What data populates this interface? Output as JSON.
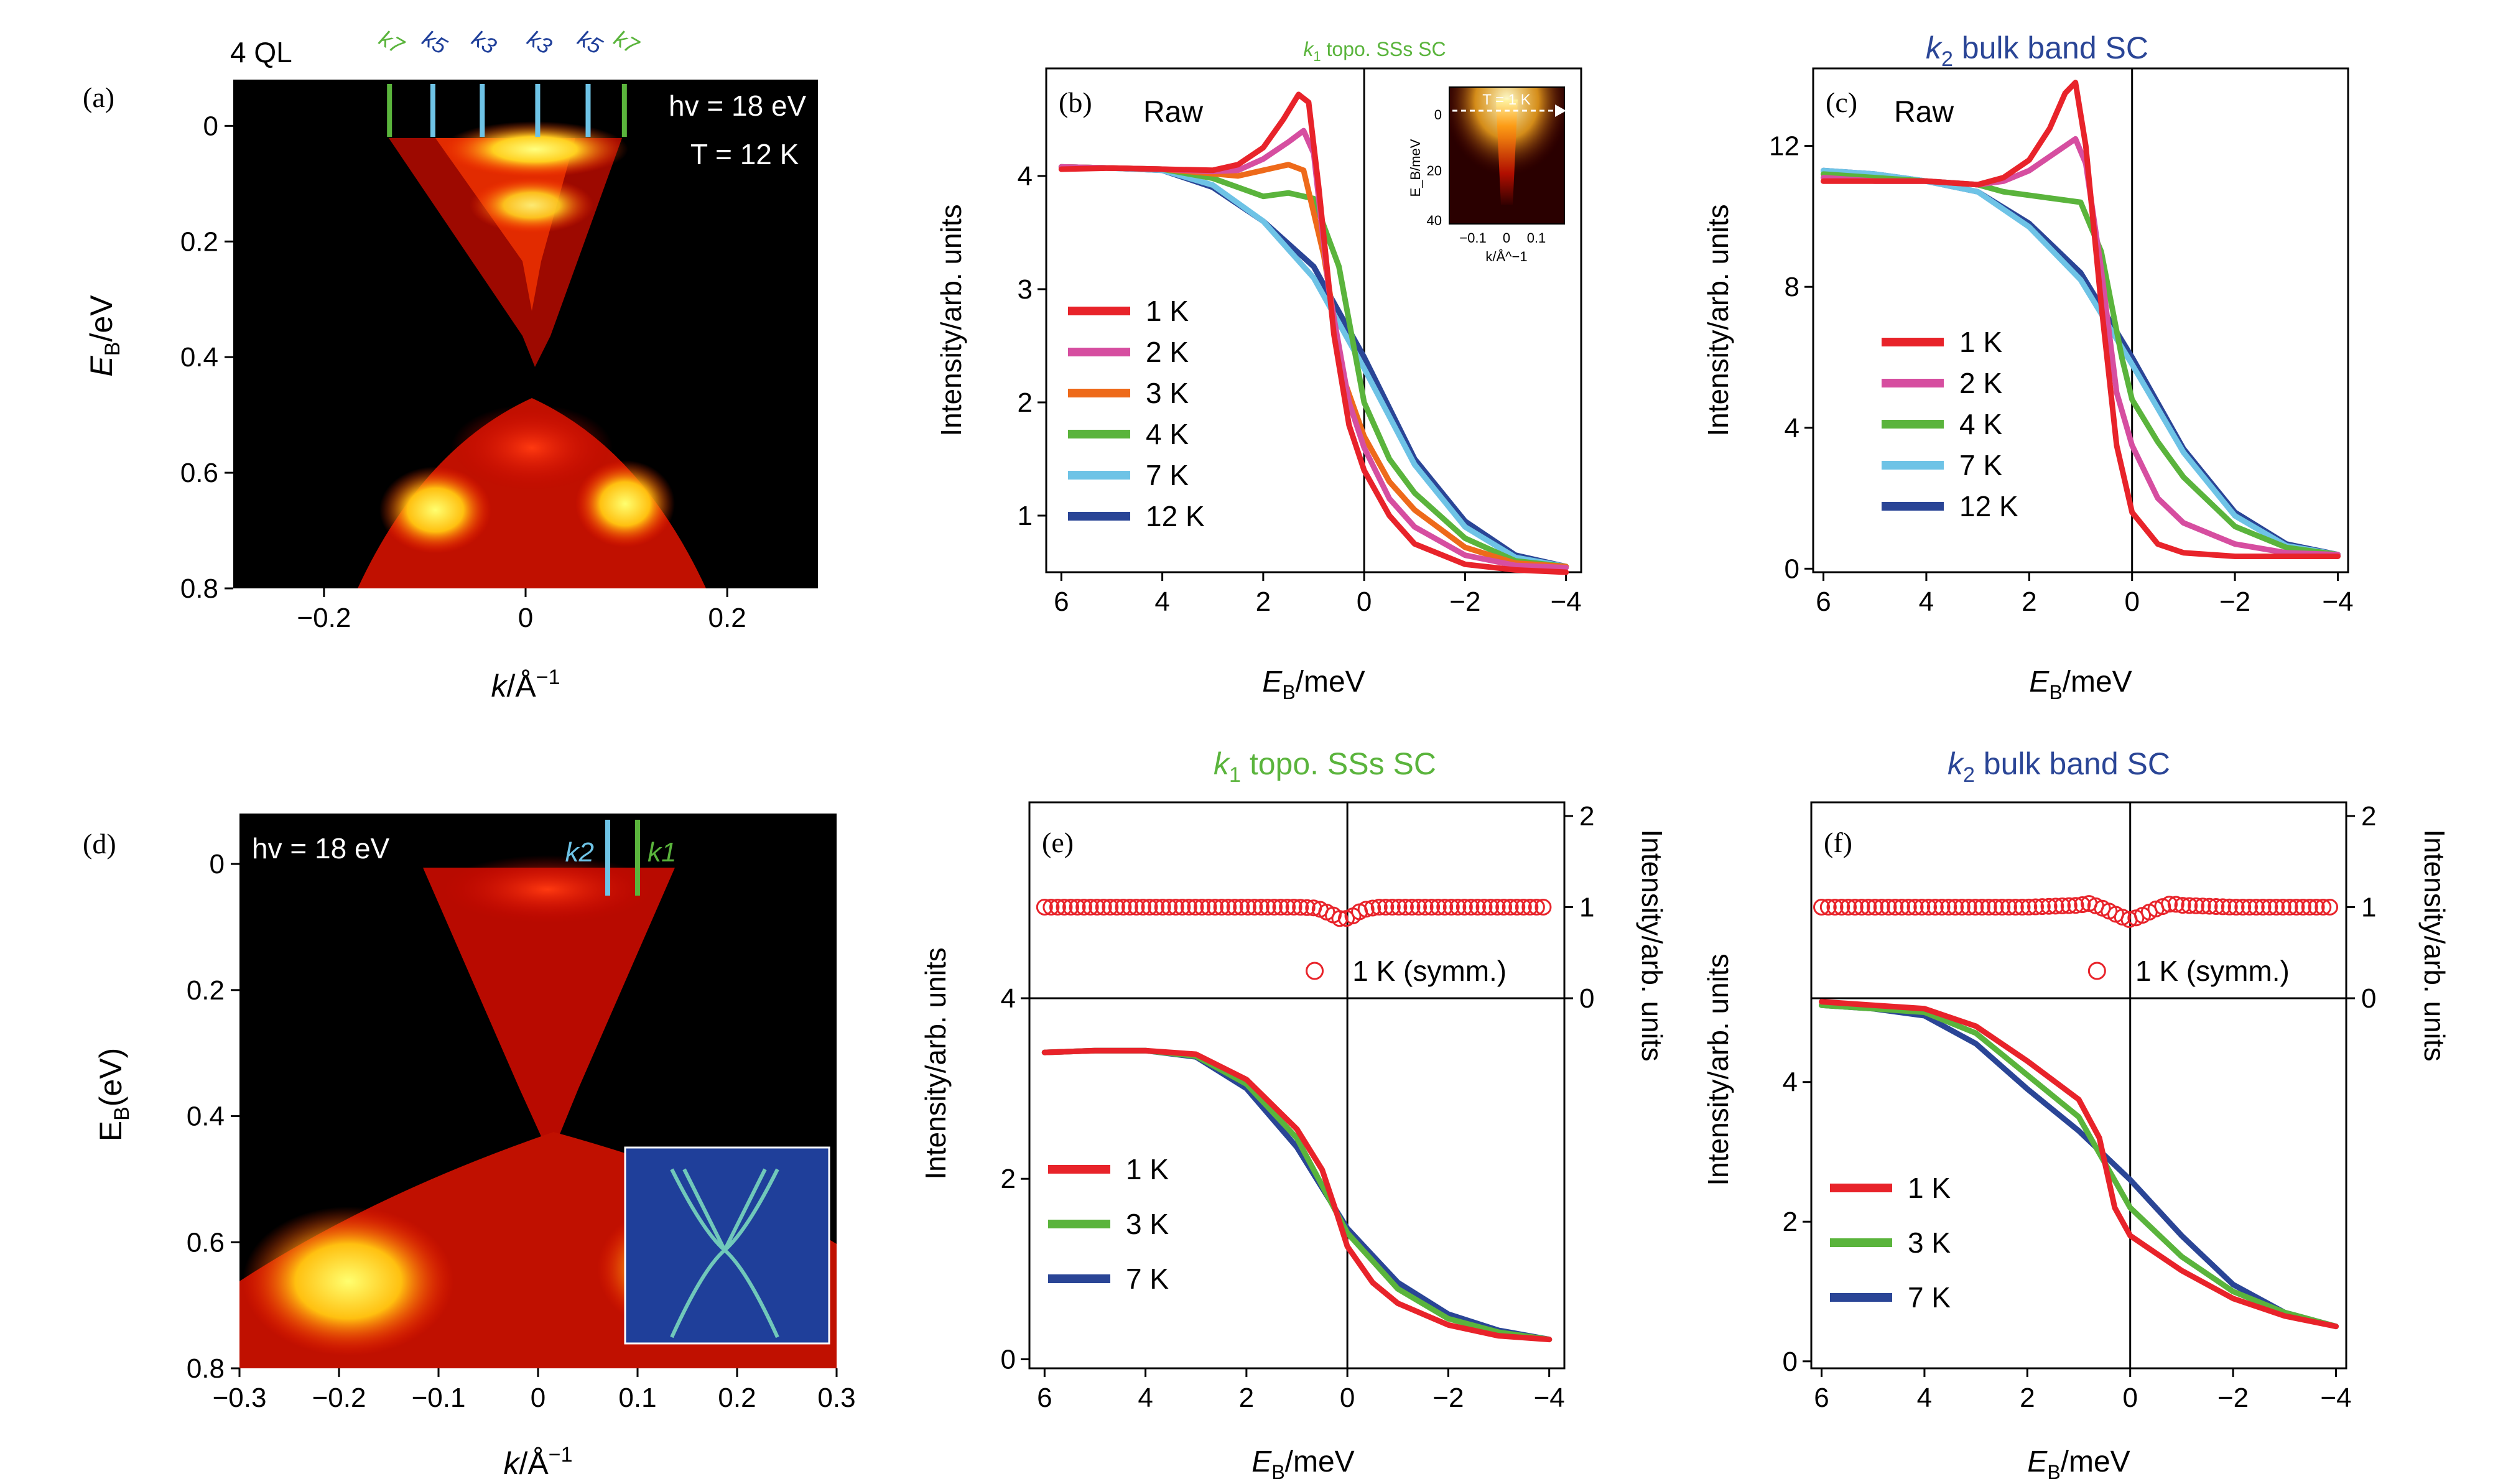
{
  "chart_data": [
    {
      "panel": "(a)",
      "type": "heatmap",
      "xlabel_pre": "k",
      "xlabel_post": "/Å",
      "xlabel_sup": "−1",
      "ylabel_pre": "E",
      "ylabel_sub": "B",
      "ylabel_post": "/eV",
      "xlim": [
        -0.29,
        0.29
      ],
      "ylim": [
        0.8,
        -0.08
      ],
      "xticks": [
        -0.2,
        0,
        0.2
      ],
      "xticklabels": [
        "−0.2",
        "0",
        "0.2"
      ],
      "yticks": [
        0,
        0.2,
        0.4,
        0.6,
        0.8
      ],
      "yticklabels": [
        "0",
        "0.2",
        "0.4",
        "0.6",
        "0.8"
      ],
      "corner_label": "4 QL",
      "annotation_hv": "hv = 18 eV",
      "annotation_T": "T = 12 K",
      "k_markers": [
        {
          "k": -0.135,
          "label": "k7",
          "color": "#5ab43c"
        },
        {
          "k": -0.092,
          "label": "k5",
          "color": "#6ec3e6"
        },
        {
          "k": -0.043,
          "label": "k3",
          "color": "#6ec3e6"
        },
        {
          "k": 0.012,
          "label": "k3",
          "color": "#6ec3e6"
        },
        {
          "k": 0.062,
          "label": "k5",
          "color": "#6ec3e6"
        },
        {
          "k": 0.098,
          "label": "k7",
          "color": "#5ab43c"
        }
      ]
    },
    {
      "panel": "(b)",
      "type": "line",
      "title_sub": "1",
      "title_text": " topo. SSs SC",
      "title_color": "#5ab43c",
      "corner_label": "Raw",
      "xlabel_pre": "E",
      "xlabel_sub": "B",
      "xlabel_post": "/meV",
      "ylabel": "Intensity/arb. units",
      "xlim": [
        6.3,
        -4.3
      ],
      "ylim": [
        0.5,
        4.95
      ],
      "xticks": [
        6,
        4,
        2,
        0,
        -2,
        -4
      ],
      "xticklabels": [
        "6",
        "4",
        "2",
        "0",
        "−2",
        "−4"
      ],
      "yticks": [
        1,
        2,
        3,
        4
      ],
      "yticklabels": [
        "1",
        "2",
        "3",
        "4"
      ],
      "series": [
        {
          "name": "12 K",
          "color": "#2a4596",
          "x": [
            6,
            5,
            4,
            3,
            2,
            1,
            0,
            -1,
            -2,
            -3,
            -4
          ],
          "y": [
            4.08,
            4.07,
            4.05,
            3.9,
            3.6,
            3.2,
            2.4,
            1.5,
            0.95,
            0.65,
            0.55
          ]
        },
        {
          "name": "7 K",
          "color": "#6ec3e6",
          "x": [
            6,
            5,
            4,
            3,
            2,
            1,
            0,
            -1,
            -2,
            -3,
            -4
          ],
          "y": [
            4.08,
            4.07,
            4.05,
            3.92,
            3.6,
            3.1,
            2.3,
            1.45,
            0.9,
            0.63,
            0.55
          ]
        },
        {
          "name": "4 K",
          "color": "#5ab43c",
          "x": [
            6,
            5,
            4,
            3,
            2.5,
            2,
            1.5,
            1,
            0.5,
            0,
            -0.5,
            -1,
            -2,
            -3,
            -4
          ],
          "y": [
            4.08,
            4.07,
            4.06,
            3.98,
            3.9,
            3.82,
            3.85,
            3.8,
            3.2,
            2.0,
            1.5,
            1.2,
            0.8,
            0.6,
            0.55
          ]
        },
        {
          "name": "3 K",
          "color": "#ee6a1a",
          "x": [
            6,
            5,
            4,
            3,
            2.5,
            2,
            1.5,
            1.2,
            0.8,
            0.4,
            0,
            -0.5,
            -1,
            -2,
            -3,
            -4
          ],
          "y": [
            4.08,
            4.07,
            4.06,
            4.02,
            4.0,
            4.05,
            4.1,
            4.05,
            3.3,
            2.2,
            1.7,
            1.3,
            1.05,
            0.72,
            0.58,
            0.55
          ]
        },
        {
          "name": "2 K",
          "color": "#d64ea0",
          "x": [
            6,
            5,
            4,
            3,
            2.5,
            2,
            1.5,
            1.2,
            1.0,
            0.7,
            0.3,
            0,
            -0.5,
            -1,
            -2,
            -3,
            -4
          ],
          "y": [
            4.08,
            4.07,
            4.06,
            4.04,
            4.05,
            4.15,
            4.3,
            4.4,
            4.2,
            3.0,
            2.0,
            1.6,
            1.15,
            0.9,
            0.65,
            0.56,
            0.54
          ]
        },
        {
          "name": "1 K",
          "color": "#e8232a",
          "x": [
            6,
            5,
            4,
            3,
            2.5,
            2,
            1.6,
            1.3,
            1.1,
            0.9,
            0.6,
            0.3,
            0,
            -0.5,
            -1,
            -2,
            -3,
            -4
          ],
          "y": [
            4.06,
            4.07,
            4.06,
            4.05,
            4.1,
            4.25,
            4.5,
            4.72,
            4.65,
            3.9,
            2.6,
            1.8,
            1.4,
            1.0,
            0.75,
            0.57,
            0.52,
            0.5
          ]
        }
      ],
      "inset": {
        "label_T": "T = 1 K",
        "xticklabels": [
          "−0.1",
          "0",
          "0.1"
        ],
        "yticklabels": [
          "0",
          "20",
          "40"
        ],
        "ylabel": "E_B/meV",
        "xlabel": "k/Å^−1"
      }
    },
    {
      "panel": "(c)",
      "type": "line",
      "title_sub": "2",
      "title_text": " bulk band SC",
      "title_color": "#2a4596",
      "corner_label": "Raw",
      "xlabel_pre": "E",
      "xlabel_sub": "B",
      "xlabel_post": "/meV",
      "ylabel": "Intensity/arb. units",
      "xlim": [
        6.2,
        -4.2
      ],
      "ylim": [
        -0.1,
        14.2
      ],
      "xticks": [
        6,
        4,
        2,
        0,
        -2,
        -4
      ],
      "xticklabels": [
        "6",
        "4",
        "2",
        "0",
        "−2",
        "−4"
      ],
      "yticks": [
        0,
        4,
        8,
        12
      ],
      "yticklabels": [
        "0",
        "4",
        "8",
        "12"
      ],
      "series": [
        {
          "name": "12 K",
          "color": "#2a4596",
          "x": [
            6,
            5,
            4,
            3,
            2,
            1,
            0,
            -1,
            -2,
            -3,
            -4
          ],
          "y": [
            11.3,
            11.2,
            11.0,
            10.7,
            9.8,
            8.4,
            6.0,
            3.4,
            1.6,
            0.7,
            0.4
          ]
        },
        {
          "name": "7 K",
          "color": "#6ec3e6",
          "x": [
            6,
            5,
            4,
            3,
            2,
            1,
            0,
            -1,
            -2,
            -3,
            -4
          ],
          "y": [
            11.3,
            11.2,
            11.0,
            10.7,
            9.7,
            8.2,
            5.8,
            3.3,
            1.5,
            0.65,
            0.4
          ]
        },
        {
          "name": "4 K",
          "color": "#5ab43c",
          "x": [
            6,
            5,
            4,
            3,
            2.5,
            2,
            1.5,
            1.0,
            0.6,
            0.2,
            0,
            -0.5,
            -1,
            -2,
            -3,
            -4
          ],
          "y": [
            11.2,
            11.1,
            11.0,
            10.9,
            10.7,
            10.6,
            10.5,
            10.4,
            9.0,
            6.0,
            4.8,
            3.6,
            2.6,
            1.2,
            0.6,
            0.4
          ]
        },
        {
          "name": "2 K",
          "color": "#d64ea0",
          "x": [
            6,
            5,
            4,
            3,
            2.5,
            2,
            1.5,
            1.1,
            0.9,
            0.6,
            0.3,
            0,
            -0.5,
            -1,
            -2,
            -3,
            -4
          ],
          "y": [
            11.1,
            11.0,
            11.0,
            10.9,
            11.0,
            11.3,
            11.8,
            12.2,
            11.5,
            8.5,
            5.0,
            3.5,
            2.0,
            1.3,
            0.7,
            0.45,
            0.4
          ]
        },
        {
          "name": "1 K",
          "color": "#e8232a",
          "x": [
            6,
            5,
            4,
            3,
            2.5,
            2,
            1.6,
            1.3,
            1.1,
            0.9,
            0.6,
            0.3,
            0,
            -0.5,
            -1,
            -2,
            -3,
            -4
          ],
          "y": [
            11.0,
            11.0,
            11.0,
            10.9,
            11.1,
            11.6,
            12.5,
            13.5,
            13.8,
            12.0,
            7.5,
            3.5,
            1.6,
            0.7,
            0.45,
            0.35,
            0.35,
            0.35
          ]
        }
      ]
    },
    {
      "panel": "(d)",
      "type": "heatmap",
      "xlabel_pre": "k",
      "xlabel_post": "/Å",
      "xlabel_sup": "−1",
      "ylabel_pre": "E",
      "ylabel_sub": "B",
      "ylabel_post": "(eV)",
      "xlim": [
        -0.3,
        0.3
      ],
      "ylim": [
        0.8,
        -0.08
      ],
      "xticks": [
        -0.3,
        -0.2,
        -0.1,
        0,
        0.1,
        0.2,
        0.3
      ],
      "xticklabels": [
        "−0.3",
        "−0.2",
        "−0.1",
        "0",
        "0.1",
        "0.2",
        "0.3"
      ],
      "yticks": [
        0,
        0.2,
        0.4,
        0.6,
        0.8
      ],
      "yticklabels": [
        "0",
        "0.2",
        "0.4",
        "0.6",
        "0.8"
      ],
      "annotation_hv": "hv = 18 eV",
      "k_markers": [
        {
          "k": 0.07,
          "label": "k2",
          "color": "#6ec3e6"
        },
        {
          "k": 0.1,
          "label": "k1",
          "color": "#5ab43c"
        }
      ]
    },
    {
      "panel": "(e)",
      "type": "line",
      "title_sub": "1",
      "title_text": " topo. SSs SC",
      "title_color": "#5ab43c",
      "xlabel_pre": "E",
      "xlabel_sub": "B",
      "xlabel_post": "/meV",
      "ylabel": "Intensity/arb. units",
      "ylabel_right": "Intensity/arb. units",
      "xlim": [
        6.3,
        -4.3
      ],
      "ylim": [
        -0.1,
        4.0
      ],
      "xticks": [
        6,
        4,
        2,
        0,
        -2,
        -4
      ],
      "xticklabels": [
        "6",
        "4",
        "2",
        "0",
        "−2",
        "−4"
      ],
      "yticks": [
        0,
        2,
        4
      ],
      "yticklabels": [
        "0",
        "2",
        "4"
      ],
      "ylim_right": [
        0,
        2.15
      ],
      "yticks_right": [
        0,
        1,
        2
      ],
      "yticklabels_right": [
        "0",
        "1",
        "2"
      ],
      "series": [
        {
          "name": "7 K",
          "color": "#2a4596",
          "x": [
            6,
            5,
            4,
            3,
            2,
            1,
            0,
            -1,
            -2,
            -3,
            -4
          ],
          "y": [
            3.4,
            3.42,
            3.42,
            3.35,
            3.0,
            2.35,
            1.45,
            0.85,
            0.5,
            0.32,
            0.22
          ]
        },
        {
          "name": "3 K",
          "color": "#5ab43c",
          "x": [
            6,
            5,
            4,
            3,
            2,
            1,
            0,
            -1,
            -2,
            -3,
            -4
          ],
          "y": [
            3.4,
            3.42,
            3.42,
            3.36,
            3.05,
            2.45,
            1.4,
            0.78,
            0.45,
            0.3,
            0.22
          ]
        },
        {
          "name": "1 K",
          "color": "#e8232a",
          "x": [
            6,
            5,
            4,
            3,
            2,
            1,
            0.5,
            0.2,
            0,
            -0.5,
            -1,
            -2,
            -3,
            -4
          ],
          "y": [
            3.4,
            3.42,
            3.42,
            3.38,
            3.1,
            2.55,
            2.1,
            1.6,
            1.25,
            0.85,
            0.62,
            0.38,
            0.26,
            0.22
          ]
        }
      ],
      "symm": {
        "name": "1 K (symm.)",
        "color": "#e8232a",
        "x": [
          6,
          4,
          2,
          1,
          0.6,
          0.3,
          0.1,
          -0.1,
          -0.3,
          -0.6,
          -1,
          -2,
          -4
        ],
        "y": [
          1.0,
          1.0,
          1.0,
          1.0,
          0.99,
          0.92,
          0.86,
          0.9,
          0.97,
          1.0,
          1.0,
          1.0,
          1.0
        ]
      }
    },
    {
      "panel": "(f)",
      "type": "line",
      "title_sub": "2",
      "title_text": " bulk band SC",
      "title_color": "#2a4596",
      "xlabel_pre": "E",
      "xlabel_sub": "B",
      "xlabel_post": "/meV",
      "ylabel": "Intensity/arb. units",
      "ylabel_right": "Intensity/arb. units",
      "xlim": [
        6.2,
        -4.2
      ],
      "ylim": [
        -0.1,
        5.2
      ],
      "xticks": [
        6,
        4,
        2,
        0,
        -2,
        -4
      ],
      "xticklabels": [
        "6",
        "4",
        "2",
        "0",
        "−2",
        "−4"
      ],
      "yticks": [
        0,
        2,
        4
      ],
      "yticklabels": [
        "0",
        "2",
        "4"
      ],
      "ylim_right": [
        0,
        2.15
      ],
      "yticks_right": [
        0,
        1,
        2
      ],
      "yticklabels_right": [
        "0",
        "1",
        "2"
      ],
      "series": [
        {
          "name": "7 K",
          "color": "#2a4596",
          "x": [
            6,
            5,
            4,
            3,
            2,
            1,
            0,
            -1,
            -2,
            -3,
            -4
          ],
          "y": [
            5.1,
            5.05,
            4.95,
            4.55,
            3.9,
            3.3,
            2.6,
            1.8,
            1.1,
            0.7,
            0.5
          ]
        },
        {
          "name": "3 K",
          "color": "#5ab43c",
          "x": [
            6,
            5,
            4,
            3,
            2,
            1,
            0,
            -1,
            -2,
            -3,
            -4
          ],
          "y": [
            5.1,
            5.05,
            5.0,
            4.7,
            4.1,
            3.5,
            2.2,
            1.5,
            1.0,
            0.7,
            0.5
          ]
        },
        {
          "name": "1 K",
          "color": "#e8232a",
          "x": [
            6,
            5,
            4,
            3,
            2,
            1,
            0.6,
            0.3,
            0,
            -0.5,
            -1,
            -2,
            -3,
            -4
          ],
          "y": [
            5.15,
            5.1,
            5.05,
            4.8,
            4.3,
            3.75,
            3.2,
            2.2,
            1.8,
            1.55,
            1.3,
            0.9,
            0.65,
            0.5
          ]
        }
      ],
      "symm": {
        "name": "1 K (symm.)",
        "color": "#e8232a",
        "x": [
          6,
          4,
          2,
          1,
          0.8,
          0.5,
          0.2,
          0,
          -0.2,
          -0.5,
          -0.8,
          -1,
          -2,
          -4
        ],
        "y": [
          1.0,
          1.0,
          1.0,
          1.02,
          1.04,
          0.98,
          0.9,
          0.86,
          0.9,
          0.98,
          1.04,
          1.02,
          1.0,
          1.0
        ]
      }
    }
  ]
}
